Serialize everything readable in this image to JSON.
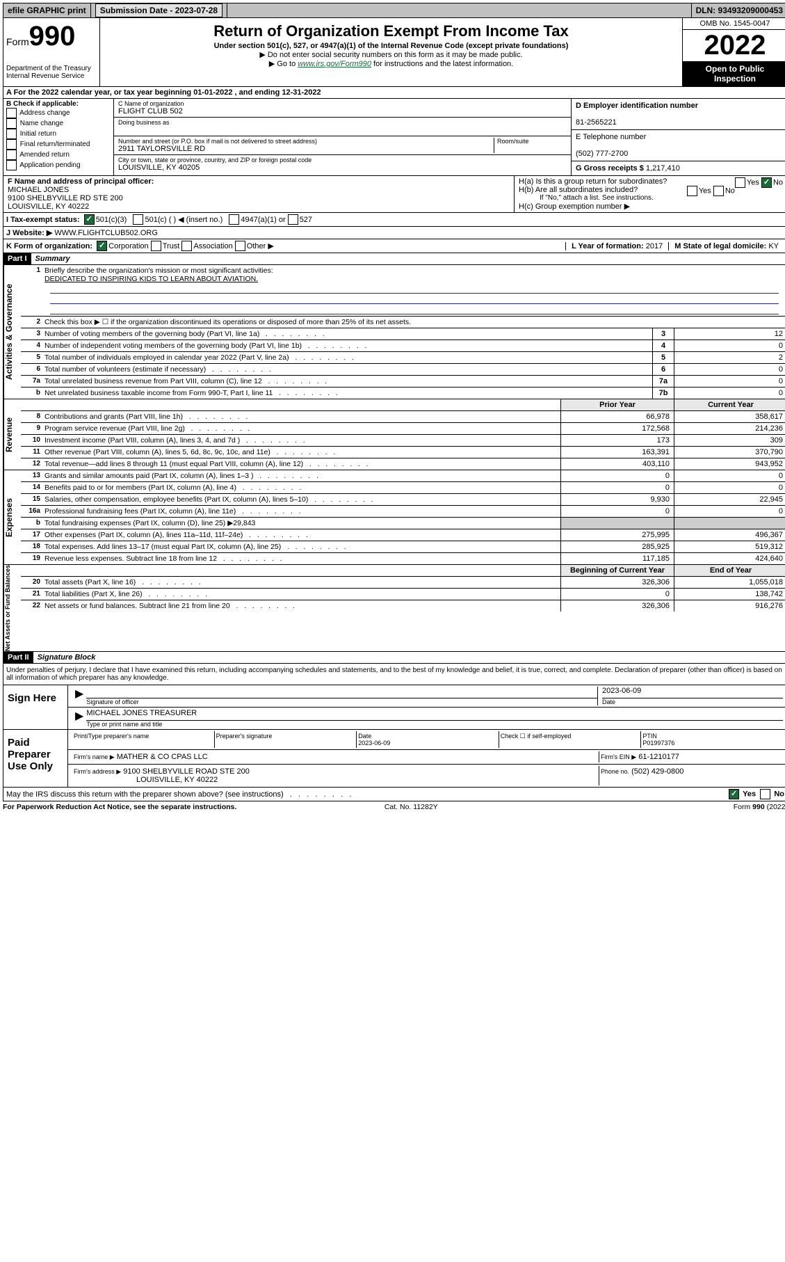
{
  "topbar": {
    "efile": "efile GRAPHIC print",
    "submission": "Submission Date - 2023-07-28",
    "dln": "DLN: 93493209000453"
  },
  "header": {
    "form": "Form",
    "num": "990",
    "dept": "Department of the Treasury",
    "irs": "Internal Revenue Service",
    "title": "Return of Organization Exempt From Income Tax",
    "sub": "Under section 501(c), 527, or 4947(a)(1) of the Internal Revenue Code (except private foundations)",
    "note1": "▶ Do not enter social security numbers on this form as it may be made public.",
    "note2": "▶ Go to www.irs.gov/Form990 for instructions and the latest information.",
    "note2_link": "www.irs.gov/Form990",
    "omb": "OMB No. 1545-0047",
    "year": "2022",
    "open": "Open to Public Inspection"
  },
  "rowA": "A For the 2022 calendar year, or tax year beginning 01-01-2022    , and ending 12-31-2022",
  "boxB": {
    "label": "B Check if applicable:",
    "opts": [
      "Address change",
      "Name change",
      "Initial return",
      "Final return/terminated",
      "Amended return",
      "Application pending"
    ]
  },
  "boxC": {
    "label": "C Name of organization",
    "name": "FLIGHT CLUB 502",
    "dba_label": "Doing business as",
    "addr_label": "Number and street (or P.O. box if mail is not delivered to street address)",
    "room": "Room/suite",
    "addr": "2911 TAYLORSVILLE RD",
    "city_label": "City or town, state or province, country, and ZIP or foreign postal code",
    "city": "LOUISVILLE, KY  40205"
  },
  "boxD": {
    "label": "D Employer identification number",
    "val": "81-2565221"
  },
  "boxE": {
    "label": "E Telephone number",
    "val": "(502) 777-2700"
  },
  "boxG": {
    "label": "G Gross receipts $",
    "val": "1,217,410"
  },
  "boxF": {
    "label": "F Name and address of principal officer:",
    "name": "MICHAEL JONES",
    "addr": "9100 SHELBYVILLE RD STE 200\nLOUISVILLE, KY  40222"
  },
  "boxH": {
    "a": "H(a)  Is this a group return for subordinates?",
    "b": "H(b)  Are all subordinates included?",
    "b_note": "If \"No,\" attach a list. See instructions.",
    "c": "H(c)  Group exemption number ▶",
    "yes": "Yes",
    "no": "No"
  },
  "boxI": {
    "label": "I    Tax-exempt status:",
    "o1": "501(c)(3)",
    "o2": "501(c) (  ) ◀ (insert no.)",
    "o3": "4947(a)(1) or",
    "o4": "527"
  },
  "boxJ": {
    "label": "J    Website: ▶",
    "val": "WWW.FLIGHTCLUB502.ORG"
  },
  "boxK": {
    "label": "K Form of organization:",
    "o1": "Corporation",
    "o2": "Trust",
    "o3": "Association",
    "o4": "Other ▶"
  },
  "boxL": {
    "label": "L Year of formation:",
    "val": "2017"
  },
  "boxM": {
    "label": "M State of legal domicile:",
    "val": "KY"
  },
  "partI": {
    "num": "Part I",
    "title": "Summary"
  },
  "q1": {
    "label": "Briefly describe the organization's mission or most significant activities:",
    "val": "DEDICATED TO INSPIRING KIDS TO LEARN ABOUT AVIATION."
  },
  "q2": "Check this box ▶ ☐  if the organization discontinued its operations or disposed of more than 25% of its net assets.",
  "summary": {
    "gov": [
      {
        "n": "3",
        "t": "Number of voting members of the governing body (Part VI, line 1a)",
        "c": "3",
        "v": "12"
      },
      {
        "n": "4",
        "t": "Number of independent voting members of the governing body (Part VI, line 1b)",
        "c": "4",
        "v": "0"
      },
      {
        "n": "5",
        "t": "Total number of individuals employed in calendar year 2022 (Part V, line 2a)",
        "c": "5",
        "v": "2"
      },
      {
        "n": "6",
        "t": "Total number of volunteers (estimate if necessary)",
        "c": "6",
        "v": "0"
      },
      {
        "n": "7a",
        "t": "Total unrelated business revenue from Part VIII, column (C), line 12",
        "c": "7a",
        "v": "0"
      },
      {
        "n": "b",
        "t": "Net unrelated business taxable income from Form 990-T, Part I, line 11",
        "c": "7b",
        "v": "0"
      }
    ],
    "hdr": {
      "a": "Prior Year",
      "b": "Current Year"
    },
    "rev": [
      {
        "n": "8",
        "t": "Contributions and grants (Part VIII, line 1h)",
        "a": "66,978",
        "b": "358,617"
      },
      {
        "n": "9",
        "t": "Program service revenue (Part VIII, line 2g)",
        "a": "172,568",
        "b": "214,236"
      },
      {
        "n": "10",
        "t": "Investment income (Part VIII, column (A), lines 3, 4, and 7d )",
        "a": "173",
        "b": "309"
      },
      {
        "n": "11",
        "t": "Other revenue (Part VIII, column (A), lines 5, 6d, 8c, 9c, 10c, and 11e)",
        "a": "163,391",
        "b": "370,790"
      },
      {
        "n": "12",
        "t": "Total revenue—add lines 8 through 11 (must equal Part VIII, column (A), line 12)",
        "a": "403,110",
        "b": "943,952"
      }
    ],
    "exp": [
      {
        "n": "13",
        "t": "Grants and similar amounts paid (Part IX, column (A), lines 1–3 )",
        "a": "0",
        "b": "0"
      },
      {
        "n": "14",
        "t": "Benefits paid to or for members (Part IX, column (A), line 4)",
        "a": "0",
        "b": "0"
      },
      {
        "n": "15",
        "t": "Salaries, other compensation, employee benefits (Part IX, column (A), lines 5–10)",
        "a": "9,930",
        "b": "22,945"
      },
      {
        "n": "16a",
        "t": "Professional fundraising fees (Part IX, column (A), line 11e)",
        "a": "0",
        "b": "0"
      },
      {
        "n": "b",
        "t": "Total fundraising expenses (Part IX, column (D), line 25) ▶29,843",
        "a": "",
        "b": ""
      },
      {
        "n": "17",
        "t": "Other expenses (Part IX, column (A), lines 11a–11d, 11f–24e)",
        "a": "275,995",
        "b": "496,367"
      },
      {
        "n": "18",
        "t": "Total expenses. Add lines 13–17 (must equal Part IX, column (A), line 25)",
        "a": "285,925",
        "b": "519,312"
      },
      {
        "n": "19",
        "t": "Revenue less expenses. Subtract line 18 from line 12",
        "a": "117,185",
        "b": "424,640"
      }
    ],
    "hdr2": {
      "a": "Beginning of Current Year",
      "b": "End of Year"
    },
    "net": [
      {
        "n": "20",
        "t": "Total assets (Part X, line 16)",
        "a": "326,306",
        "b": "1,055,018"
      },
      {
        "n": "21",
        "t": "Total liabilities (Part X, line 26)",
        "a": "0",
        "b": "138,742"
      },
      {
        "n": "22",
        "t": "Net assets or fund balances. Subtract line 21 from line 20",
        "a": "326,306",
        "b": "916,276"
      }
    ]
  },
  "sidebars": {
    "gov": "Activities & Governance",
    "rev": "Revenue",
    "exp": "Expenses",
    "net": "Net Assets or Fund Balances"
  },
  "partII": {
    "num": "Part II",
    "title": "Signature Block"
  },
  "declaration": "Under penalties of perjury, I declare that I have examined this return, including accompanying schedules and statements, and to the best of my knowledge and belief, it is true, correct, and complete. Declaration of preparer (other than officer) is based on all information of which preparer has any knowledge.",
  "sign": {
    "here": "Sign Here",
    "sig_label": "Signature of officer",
    "date": "2023-06-09",
    "date_label": "Date",
    "name": "MICHAEL JONES TREASURER",
    "name_label": "Type or print name and title"
  },
  "paid": {
    "title": "Paid Preparer Use Only",
    "c1": "Print/Type preparer's name",
    "c2": "Preparer's signature",
    "c3": "Date",
    "c3v": "2023-06-09",
    "c4": "Check ☐ if self-employed",
    "c5": "PTIN",
    "c5v": "P01997376",
    "firm_label": "Firm's name    ▶",
    "firm": "MATHER & CO CPAS LLC",
    "ein_label": "Firm's EIN ▶",
    "ein": "61-1210177",
    "addr_label": "Firm's address ▶",
    "addr": "9100 SHELBYVILLE ROAD STE 200",
    "addr2": "LOUISVILLE, KY  40222",
    "phone_label": "Phone no.",
    "phone": "(502) 429-0800"
  },
  "discuss": "May the IRS discuss this return with the preparer shown above? (see instructions)",
  "footer": {
    "left": "For Paperwork Reduction Act Notice, see the separate instructions.",
    "mid": "Cat. No. 11282Y",
    "right": "Form 990 (2022)"
  }
}
